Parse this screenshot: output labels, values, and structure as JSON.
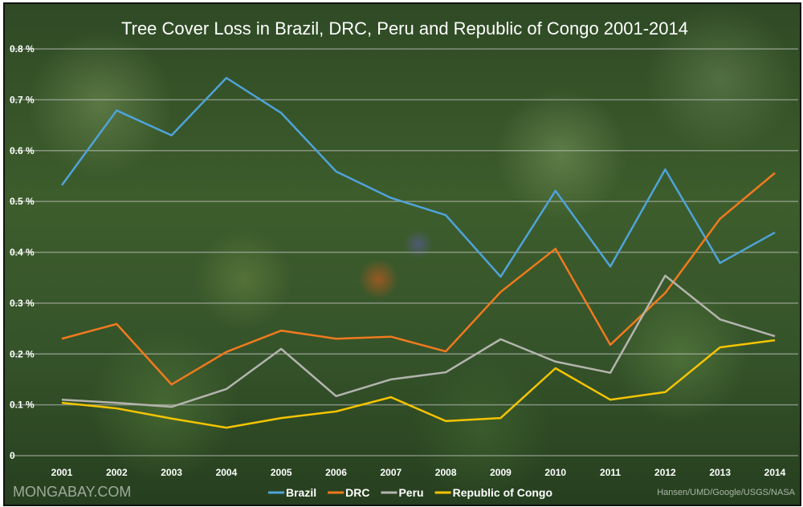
{
  "chart_data": {
    "type": "line",
    "title": "Tree Cover Loss in Brazil, DRC, Peru and Republic of Congo 2001-2014",
    "xlabel": "",
    "ylabel": "",
    "ylim": [
      0,
      0.8
    ],
    "y_ticks": [
      "0",
      "0.1 %",
      "0.2 %",
      "0.3 %",
      "0.4 %",
      "0.5 %",
      "0.6 %",
      "0.7 %",
      "0.8 %"
    ],
    "grid": true,
    "legend_position": "bottom",
    "categories": [
      "2001",
      "2002",
      "2003",
      "2004",
      "2005",
      "2006",
      "2007",
      "2008",
      "2009",
      "2010",
      "2011",
      "2012",
      "2013",
      "2014"
    ],
    "series": [
      {
        "name": "Brazil",
        "color": "#4fa3d9",
        "values": [
          0.532,
          0.679,
          0.63,
          0.743,
          0.674,
          0.559,
          0.507,
          0.473,
          0.352,
          0.521,
          0.372,
          0.563,
          0.379,
          0.439
        ]
      },
      {
        "name": "DRC",
        "color": "#f07a1e",
        "values": [
          0.23,
          0.259,
          0.14,
          0.204,
          0.246,
          0.23,
          0.234,
          0.205,
          0.322,
          0.407,
          0.218,
          0.32,
          0.466,
          0.556
        ]
      },
      {
        "name": "Peru",
        "color": "#b4b4ae",
        "values": [
          0.11,
          0.104,
          0.096,
          0.131,
          0.21,
          0.117,
          0.15,
          0.164,
          0.229,
          0.185,
          0.163,
          0.354,
          0.268,
          0.235
        ]
      },
      {
        "name": "Republic of Congo",
        "color": "#f5c400",
        "values": [
          0.104,
          0.093,
          0.073,
          0.055,
          0.074,
          0.087,
          0.115,
          0.068,
          0.074,
          0.172,
          0.11,
          0.125,
          0.213,
          0.227
        ]
      }
    ]
  },
  "watermark": "MONGABAY.COM",
  "credit": "Hansen/UMD/Google/USGS/NASA"
}
